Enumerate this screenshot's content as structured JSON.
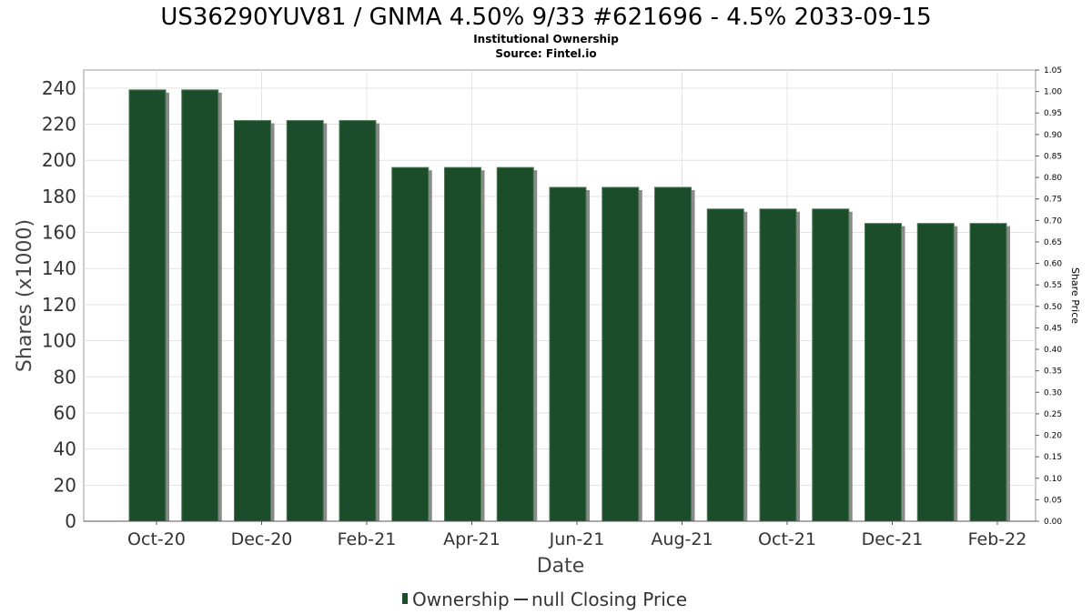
{
  "chart_data": {
    "type": "bar",
    "title": "US36290YUV81 / GNMA 4.50% 9/33 #621696 - 4.5% 2033-09-15",
    "subtitle": "Institutional Ownership",
    "source": "Source: Fintel.io",
    "xlabel": "Date",
    "ylabel": "Shares (x1000)",
    "y2label": "Share Price",
    "ylim": [
      0,
      250
    ],
    "y2lim": [
      0,
      1.05
    ],
    "yticks": [
      0,
      20,
      40,
      60,
      80,
      100,
      120,
      140,
      160,
      180,
      200,
      220,
      240
    ],
    "y2ticks": [
      "0.00",
      "0.05",
      "0.10",
      "0.15",
      "0.20",
      "0.25",
      "0.30",
      "0.35",
      "0.40",
      "0.45",
      "0.50",
      "0.55",
      "0.60",
      "0.65",
      "0.70",
      "0.75",
      "0.80",
      "0.85",
      "0.90",
      "0.95",
      "1.00",
      "1.05"
    ],
    "xticks": [
      "Oct-20",
      "Dec-20",
      "Feb-21",
      "Apr-21",
      "Jun-21",
      "Aug-21",
      "Oct-21",
      "Dec-21",
      "Feb-22"
    ],
    "grid": true,
    "legend_position": "bottom",
    "bar_color": "#1b4d2a",
    "series": [
      {
        "name": "Ownership",
        "values": [
          239,
          239,
          222,
          222,
          222,
          196,
          196,
          196,
          185,
          185,
          185,
          173,
          173,
          173,
          165,
          165,
          165
        ]
      },
      {
        "name": "null Closing Price",
        "values": []
      }
    ]
  }
}
